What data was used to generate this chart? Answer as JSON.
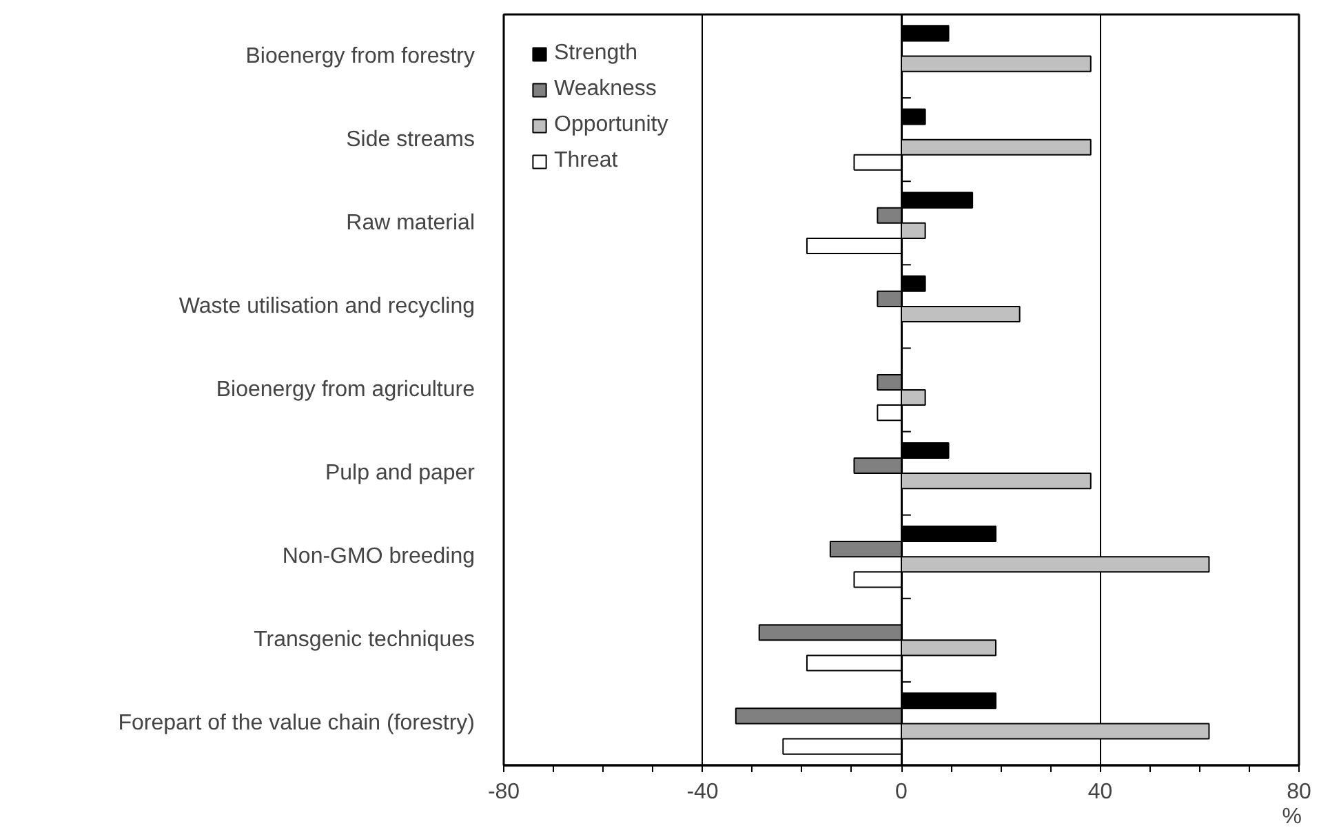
{
  "chart_data": {
    "type": "bar",
    "orientation": "horizontal",
    "xlabel": "%",
    "categories": [
      "Bioenergy from forestry",
      "Side streams",
      "Raw material",
      "Waste utilisation and recycling",
      "Bioenergy from agriculture",
      "Pulp and paper",
      "Non-GMO breeding",
      "Transgenic techniques",
      "Forepart of the value chain (forestry)"
    ],
    "series": [
      {
        "name": "Strength",
        "color": "#000000",
        "values": [
          9.5,
          4.8,
          14.3,
          4.8,
          null,
          9.5,
          19.0,
          null,
          19.0
        ]
      },
      {
        "name": "Weakness",
        "color": "#808080",
        "values": [
          null,
          null,
          -4.8,
          -4.8,
          -4.8,
          -9.5,
          -14.3,
          -28.6,
          -33.3
        ]
      },
      {
        "name": "Opportunity",
        "color": "#c0c0c0",
        "values": [
          38.1,
          38.1,
          4.8,
          23.8,
          4.8,
          38.1,
          61.9,
          19.0,
          61.9
        ]
      },
      {
        "name": "Threat",
        "color": "#ffffff",
        "values": [
          null,
          -9.5,
          -19.0,
          null,
          -4.8,
          null,
          -9.5,
          -19.0,
          -23.8
        ]
      }
    ],
    "xlim": [
      -80,
      80
    ],
    "xticks": [
      -80,
      {
        "value": -70,
        "label": null
      },
      {
        "value": -60,
        "label": null
      },
      {
        "value": -50,
        "label": null
      },
      -40,
      {
        "value": -30,
        "label": null
      },
      {
        "value": -20,
        "label": null
      },
      {
        "value": -10,
        "label": null
      },
      0,
      {
        "value": 10,
        "label": null
      },
      {
        "value": 20,
        "label": null
      },
      {
        "value": 30,
        "label": null
      },
      40,
      {
        "value": 50,
        "label": null
      },
      {
        "value": 60,
        "label": null
      },
      {
        "value": 70,
        "label": null
      },
      80
    ],
    "grid": "x",
    "legend": "top left"
  }
}
